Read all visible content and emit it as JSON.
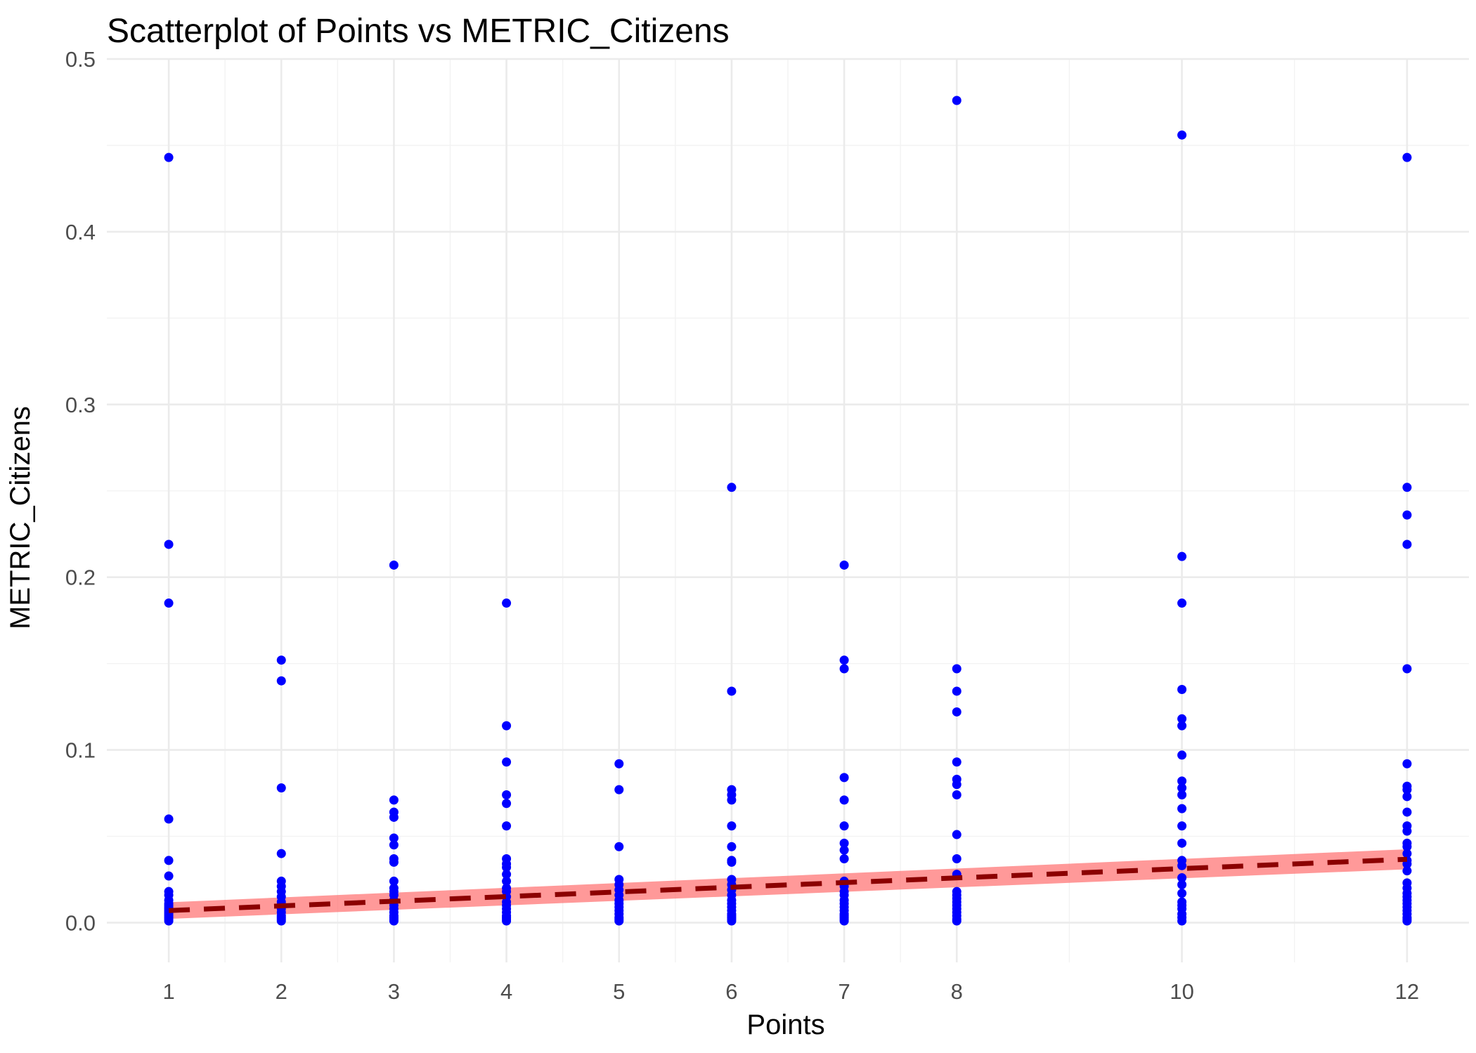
{
  "chart_data": {
    "type": "scatter",
    "title": "Scatterplot of Points vs  METRIC_Citizens",
    "xlabel": "Points",
    "ylabel": "METRIC_Citizens",
    "xlim": [
      0.45,
      12.55
    ],
    "ylim": [
      -0.023,
      0.5
    ],
    "x_ticks": [
      1,
      2,
      3,
      4,
      5,
      6,
      7,
      8,
      10,
      12
    ],
    "x_tick_labels": [
      "1",
      "2",
      "3",
      "4",
      "5",
      "6",
      "7",
      "8",
      "10",
      "12"
    ],
    "y_ticks": [
      0,
      0.1,
      0.2,
      0.3,
      0.4,
      0.5
    ],
    "y_tick_labels": [
      "0.0",
      "0.1",
      "0.2",
      "0.3",
      "0.4",
      "0.5"
    ],
    "grid": true,
    "legend": "none",
    "point_color": "#0000ff",
    "trend_color": "#8b0000",
    "band_color": "#ff6e6e",
    "trend": {
      "intercept": 0.0043,
      "slope": 0.0027,
      "band_half_width_start": 0.0048,
      "band_half_width_end": 0.0058
    },
    "series": [
      {
        "x": [
          1,
          1,
          1,
          1,
          1,
          1,
          1,
          1,
          1,
          1,
          1,
          1,
          1,
          1,
          1,
          1,
          1,
          1,
          1,
          1,
          2,
          2,
          2,
          2,
          2,
          2,
          2,
          2,
          2,
          2,
          2,
          2,
          2,
          2,
          2,
          2,
          3,
          3,
          3,
          3,
          3,
          3,
          3,
          3,
          3,
          3,
          3,
          3,
          3,
          3,
          3,
          3,
          3,
          3,
          3,
          3,
          4,
          4,
          4,
          4,
          4,
          4,
          4,
          4,
          4,
          4,
          4,
          4,
          4,
          4,
          4,
          4,
          4,
          4,
          4,
          4,
          4,
          4,
          5,
          5,
          5,
          5,
          5,
          5,
          5,
          5,
          5,
          5,
          5,
          5,
          5,
          5,
          5,
          6,
          6,
          6,
          6,
          6,
          6,
          6,
          6,
          6,
          6,
          6,
          6,
          6,
          6,
          6,
          6,
          6,
          6,
          6,
          6,
          6,
          6,
          7,
          7,
          7,
          7,
          7,
          7,
          7,
          7,
          7,
          7,
          7,
          7,
          7,
          7,
          7,
          7,
          7,
          7,
          7,
          7,
          7,
          7,
          8,
          8,
          8,
          8,
          8,
          8,
          8,
          8,
          8,
          8,
          8,
          8,
          8,
          8,
          8,
          8,
          8,
          8,
          8,
          8,
          8,
          10,
          10,
          10,
          10,
          10,
          10,
          10,
          10,
          10,
          10,
          10,
          10,
          10,
          10,
          10,
          10,
          10,
          10,
          10,
          10,
          10,
          10,
          10,
          10,
          12,
          12,
          12,
          12,
          12,
          12,
          12,
          12,
          12,
          12,
          12,
          12,
          12,
          12,
          12,
          12,
          12,
          12,
          12,
          12,
          12,
          12,
          12,
          12,
          12,
          12,
          12,
          12,
          12,
          12
        ],
        "y": [
          0.443,
          0.219,
          0.185,
          0.06,
          0.036,
          0.027,
          0.018,
          0.016,
          0.013,
          0.011,
          0.01,
          0.009,
          0.008,
          0.007,
          0.006,
          0.005,
          0.004,
          0.003,
          0.002,
          0.001,
          0.152,
          0.14,
          0.078,
          0.04,
          0.024,
          0.021,
          0.018,
          0.015,
          0.012,
          0.01,
          0.008,
          0.006,
          0.004,
          0.003,
          0.002,
          0.001,
          0.207,
          0.071,
          0.064,
          0.061,
          0.049,
          0.045,
          0.037,
          0.035,
          0.024,
          0.02,
          0.018,
          0.016,
          0.013,
          0.01,
          0.008,
          0.006,
          0.004,
          0.003,
          0.002,
          0.001,
          0.185,
          0.114,
          0.093,
          0.074,
          0.069,
          0.056,
          0.037,
          0.034,
          0.032,
          0.028,
          0.024,
          0.02,
          0.018,
          0.015,
          0.012,
          0.01,
          0.008,
          0.006,
          0.004,
          0.003,
          0.002,
          0.001,
          0.092,
          0.077,
          0.044,
          0.025,
          0.022,
          0.019,
          0.016,
          0.013,
          0.011,
          0.009,
          0.007,
          0.005,
          0.003,
          0.002,
          0.001,
          0.252,
          0.134,
          0.077,
          0.074,
          0.071,
          0.056,
          0.044,
          0.036,
          0.035,
          0.025,
          0.022,
          0.019,
          0.016,
          0.013,
          0.011,
          0.009,
          0.007,
          0.005,
          0.004,
          0.003,
          0.002,
          0.001,
          0.207,
          0.152,
          0.147,
          0.084,
          0.071,
          0.056,
          0.046,
          0.042,
          0.037,
          0.024,
          0.021,
          0.018,
          0.016,
          0.013,
          0.011,
          0.009,
          0.007,
          0.005,
          0.004,
          0.003,
          0.002,
          0.001,
          0.476,
          0.147,
          0.134,
          0.122,
          0.093,
          0.083,
          0.08,
          0.074,
          0.051,
          0.037,
          0.028,
          0.018,
          0.016,
          0.014,
          0.012,
          0.01,
          0.008,
          0.006,
          0.004,
          0.002,
          0.001,
          0.456,
          0.212,
          0.185,
          0.135,
          0.118,
          0.114,
          0.097,
          0.082,
          0.078,
          0.074,
          0.066,
          0.056,
          0.046,
          0.036,
          0.033,
          0.026,
          0.022,
          0.017,
          0.012,
          0.01,
          0.008,
          0.005,
          0.003,
          0.001,
          0.443,
          0.252,
          0.236,
          0.219,
          0.147,
          0.092,
          0.079,
          0.077,
          0.073,
          0.064,
          0.056,
          0.053,
          0.046,
          0.044,
          0.04,
          0.036,
          0.034,
          0.03,
          0.023,
          0.02,
          0.017,
          0.015,
          0.013,
          0.011,
          0.009,
          0.007,
          0.005,
          0.003,
          0.002,
          0.001
        ]
      }
    ]
  }
}
